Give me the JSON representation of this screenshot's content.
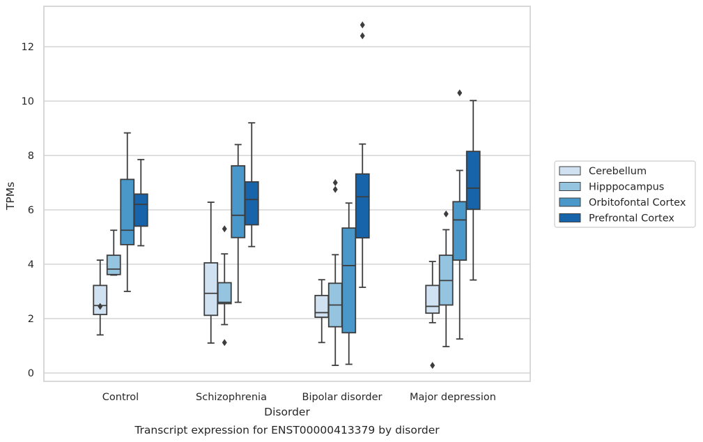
{
  "chart_data": {
    "type": "box",
    "xlabel": "Disorder",
    "ylabel": "TPMs",
    "caption": "Transcript expression for ENST00000413379 by disorder",
    "ylim": [
      -0.3,
      13.5
    ],
    "yticks": [
      0,
      2,
      4,
      6,
      8,
      10,
      12
    ],
    "grid": "horizontal",
    "legend_position": "right",
    "categories": [
      "Control",
      "Schizophrenia",
      "Bipolar disorder",
      "Major depression"
    ],
    "series": [
      {
        "name": "Cerebellum",
        "color": "#d0e1f2",
        "boxes": [
          {
            "whisker_low": 1.4,
            "q1": 2.15,
            "median": 2.48,
            "q3": 3.22,
            "whisker_high": 4.15,
            "outliers": [
              2.45
            ]
          },
          {
            "whisker_low": 1.1,
            "q1": 2.12,
            "median": 2.93,
            "q3": 4.05,
            "whisker_high": 6.28,
            "outliers": []
          },
          {
            "whisker_low": 1.12,
            "q1": 2.05,
            "median": 2.22,
            "q3": 2.85,
            "whisker_high": 3.43,
            "outliers": []
          },
          {
            "whisker_low": 1.85,
            "q1": 2.2,
            "median": 2.45,
            "q3": 3.22,
            "whisker_high": 4.1,
            "outliers": [
              0.28
            ]
          }
        ]
      },
      {
        "name": "Hipppocampus",
        "color": "#94c4df",
        "boxes": [
          {
            "whisker_low": 3.6,
            "q1": 3.62,
            "median": 3.82,
            "q3": 4.33,
            "whisker_high": 5.25,
            "outliers": []
          },
          {
            "whisker_low": 1.78,
            "q1": 2.55,
            "median": 2.6,
            "q3": 3.32,
            "whisker_high": 4.38,
            "outliers": [
              5.3,
              1.12
            ]
          },
          {
            "whisker_low": 0.28,
            "q1": 1.7,
            "median": 2.5,
            "q3": 3.3,
            "whisker_high": 4.35,
            "outliers": [
              7.0,
              6.75
            ]
          },
          {
            "whisker_low": 0.97,
            "q1": 2.5,
            "median": 3.4,
            "q3": 4.33,
            "whisker_high": 5.27,
            "outliers": [
              5.85
            ]
          }
        ]
      },
      {
        "name": "Orbitofontal Cortex",
        "color": "#4a98c9",
        "boxes": [
          {
            "whisker_low": 3.0,
            "q1": 4.72,
            "median": 5.25,
            "q3": 7.12,
            "whisker_high": 8.83,
            "outliers": []
          },
          {
            "whisker_low": 2.6,
            "q1": 4.98,
            "median": 5.8,
            "q3": 7.62,
            "whisker_high": 8.4,
            "outliers": []
          },
          {
            "whisker_low": 0.32,
            "q1": 1.48,
            "median": 3.95,
            "q3": 5.33,
            "whisker_high": 6.25,
            "outliers": []
          },
          {
            "whisker_low": 1.25,
            "q1": 4.15,
            "median": 5.63,
            "q3": 6.3,
            "whisker_high": 7.45,
            "outliers": [
              10.3
            ]
          }
        ]
      },
      {
        "name": "Prefrontal Cortex",
        "color": "#1764ab",
        "boxes": [
          {
            "whisker_low": 4.68,
            "q1": 5.4,
            "median": 6.2,
            "q3": 6.58,
            "whisker_high": 7.85,
            "outliers": []
          },
          {
            "whisker_low": 4.65,
            "q1": 5.45,
            "median": 6.38,
            "q3": 7.03,
            "whisker_high": 9.2,
            "outliers": []
          },
          {
            "whisker_low": 3.15,
            "q1": 4.97,
            "median": 6.48,
            "q3": 7.32,
            "whisker_high": 8.42,
            "outliers": [
              12.8,
              12.4
            ]
          },
          {
            "whisker_low": 3.42,
            "q1": 6.02,
            "median": 6.8,
            "q3": 8.15,
            "whisker_high": 10.02,
            "outliers": []
          }
        ]
      }
    ]
  }
}
